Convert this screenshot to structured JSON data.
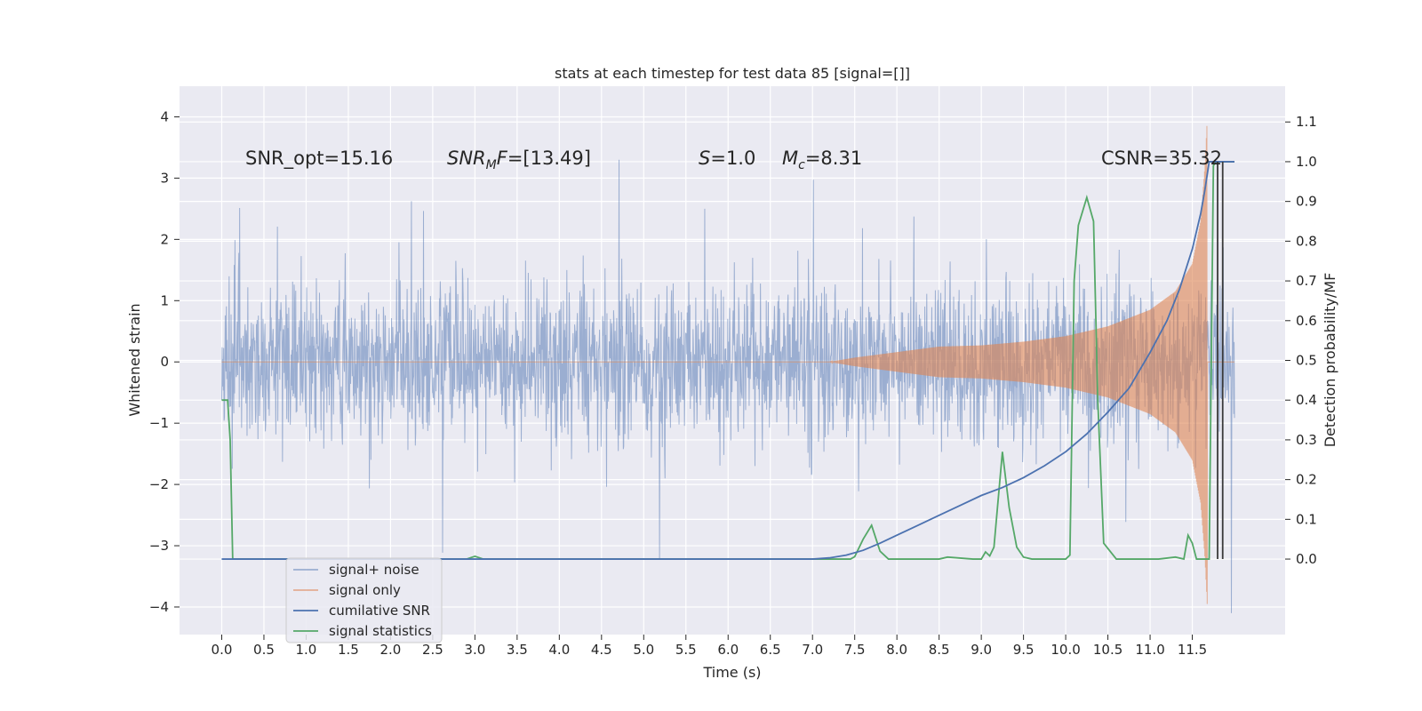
{
  "chart_data": {
    "type": "line",
    "title": "stats at each timestep for test data 85 [signal=[]]",
    "xlabel": "Time (s)",
    "ylabel_left": "Whitened strain",
    "ylabel_right": "Detection probability/MF",
    "xlim": [
      -0.5,
      12.6
    ],
    "ylim_left": [
      -4.45,
      4.5
    ],
    "ylim_right": [
      -0.19,
      1.19
    ],
    "x_ticks": [
      "0.0",
      "0.5",
      "1.0",
      "1.5",
      "2.0",
      "2.5",
      "3.0",
      "3.5",
      "4.0",
      "4.5",
      "5.0",
      "5.5",
      "6.0",
      "6.5",
      "7.0",
      "7.5",
      "8.0",
      "8.5",
      "9.0",
      "9.5",
      "10.0",
      "10.5",
      "11.0",
      "11.5"
    ],
    "y_left_ticks": [
      "−4",
      "−3",
      "−2",
      "−1",
      "0",
      "1",
      "2",
      "3",
      "4"
    ],
    "y_right_ticks": [
      "0.0",
      "0.1",
      "0.2",
      "0.3",
      "0.4",
      "0.5",
      "0.6",
      "0.7",
      "0.8",
      "0.9",
      "1.0",
      "1.1"
    ],
    "grid": true,
    "legend_position": "lower-left",
    "colors": {
      "background": "#eaeaf2",
      "grid": "#ffffff",
      "signal_noise": "#4c72b0",
      "signal_only": "#dd8452",
      "cumulative_snr": "#4c72b0",
      "signal_statistics": "#55a868",
      "vertical_markers": "#3a3a3a"
    },
    "annotations": [
      {
        "id": "snr_opt",
        "text": "SNR_opt=15.16"
      },
      {
        "id": "snr_mf",
        "text": "SNR",
        "sub": "M",
        "tail": "F=[13.49]"
      },
      {
        "id": "s_val",
        "text": "S",
        "tail": "=1.0"
      },
      {
        "id": "mc_val",
        "text": "M",
        "sub": "c",
        "tail": "=8.31"
      },
      {
        "id": "csnr",
        "text": "CSNR=35.32"
      }
    ],
    "series": [
      {
        "name": "signal+ noise",
        "axis": "left",
        "style": "dense noise trace",
        "t_start": 0.0,
        "t_end": 12.0,
        "typical_amplitude": 1.25,
        "extremes": {
          "max": 3.3,
          "min": -4.1
        }
      },
      {
        "name": "signal only",
        "axis": "left",
        "style": "chirp envelope",
        "envelope": {
          "t": [
            7.2,
            7.5,
            8.0,
            8.5,
            9.0,
            9.5,
            10.0,
            10.5,
            11.0,
            11.3,
            11.5,
            11.6,
            11.65,
            11.68
          ],
          "amp": [
            0.0,
            0.07,
            0.16,
            0.25,
            0.27,
            0.33,
            0.42,
            0.58,
            0.85,
            1.15,
            1.6,
            2.3,
            3.2,
            4.05
          ]
        },
        "t_end": 11.7
      },
      {
        "name": "cumilative SNR",
        "axis": "right",
        "x": [
          0.0,
          7.0,
          7.2,
          7.4,
          7.6,
          7.8,
          8.0,
          8.25,
          8.5,
          8.75,
          9.0,
          9.25,
          9.5,
          9.75,
          10.0,
          10.25,
          10.5,
          10.75,
          11.0,
          11.2,
          11.35,
          11.5,
          11.6,
          11.65,
          11.7,
          12.0
        ],
        "y": [
          0.0,
          0.0,
          0.003,
          0.01,
          0.022,
          0.04,
          0.06,
          0.085,
          0.11,
          0.135,
          0.16,
          0.18,
          0.205,
          0.235,
          0.27,
          0.315,
          0.37,
          0.43,
          0.52,
          0.6,
          0.68,
          0.78,
          0.87,
          0.93,
          1.0,
          1.0
        ]
      },
      {
        "name": "signal statistics",
        "axis": "right",
        "x": [
          0.0,
          0.05,
          0.07,
          0.1,
          0.13,
          2.9,
          3.0,
          3.1,
          7.45,
          7.5,
          7.6,
          7.7,
          7.8,
          7.9,
          8.5,
          8.6,
          8.9,
          9.0,
          9.05,
          9.1,
          9.15,
          9.25,
          9.33,
          9.42,
          9.5,
          9.6,
          10.0,
          10.05,
          10.1,
          10.15,
          10.25,
          10.33,
          10.38,
          10.45,
          10.6,
          11.1,
          11.3,
          11.4,
          11.45,
          11.5,
          11.55,
          11.6,
          11.7,
          11.75,
          11.78,
          11.8,
          12.0
        ],
        "y": [
          0.4,
          0.4,
          0.4,
          0.3,
          0.0,
          0.0,
          0.007,
          0.0,
          0.0,
          0.006,
          0.05,
          0.085,
          0.02,
          0.0,
          0.0,
          0.005,
          0.0,
          0.0,
          0.018,
          0.008,
          0.03,
          0.27,
          0.13,
          0.03,
          0.005,
          0.0,
          0.0,
          0.01,
          0.7,
          0.84,
          0.91,
          0.85,
          0.4,
          0.04,
          0.0,
          0.0,
          0.005,
          0.0,
          0.06,
          0.04,
          0.0,
          0.0,
          0.0,
          0.99,
          1.0,
          1.0,
          1.0
        ]
      }
    ],
    "vertical_markers": [
      11.8,
      11.86
    ],
    "legend": [
      "signal+ noise",
      "signal only",
      "cumilative SNR",
      "signal statistics"
    ]
  }
}
